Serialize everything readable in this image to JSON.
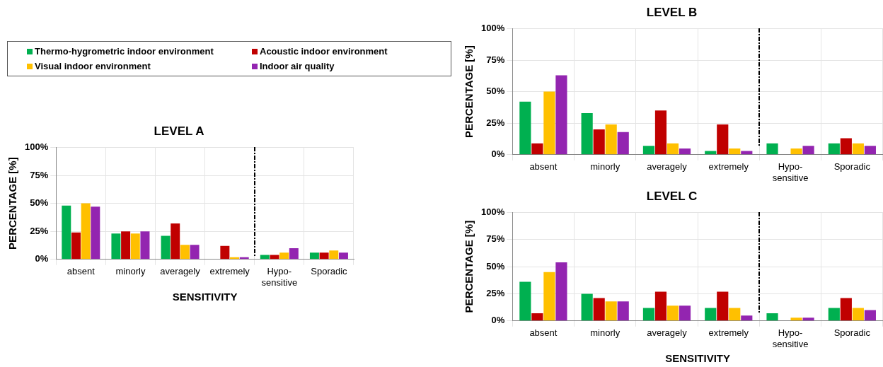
{
  "chart_data": [
    {
      "type": "bar",
      "title": "LEVEL A",
      "xlabel": "SENSITIVITY",
      "ylabel": "PERCENTAGE [%]",
      "categories": [
        "absent",
        "minorly",
        "averagely",
        "extremely",
        "Hypo-sensitive",
        "Sporadic"
      ],
      "series": [
        {
          "name": "Thermo-hygrometric indoor environment",
          "color": "#00b050",
          "values": [
            48,
            23,
            21,
            0,
            4,
            6
          ]
        },
        {
          "name": "Acoustic indoor environment",
          "color": "#c00000",
          "values": [
            24,
            25,
            32,
            12,
            4,
            6
          ]
        },
        {
          "name": "Visual indoor environment",
          "color": "#ffc000",
          "values": [
            50,
            23,
            13,
            2,
            6,
            8
          ]
        },
        {
          "name": "Indoor air quality",
          "color": "#9325b0",
          "values": [
            47,
            25,
            13,
            2,
            10,
            6
          ]
        }
      ],
      "ylim": [
        0,
        100
      ],
      "yticks": [
        {
          "value": 0,
          "label": "0%"
        },
        {
          "value": 25,
          "label": "25%"
        },
        {
          "value": 50,
          "label": "50%"
        },
        {
          "value": 75,
          "label": "75%"
        },
        {
          "value": 100,
          "label": "100%"
        }
      ],
      "grid": true,
      "legend": "top"
    },
    {
      "type": "bar",
      "title": "LEVEL B",
      "ylabel": "PERCENTAGE [%]",
      "categories": [
        "absent",
        "minorly",
        "averagely",
        "extremely",
        "Hypo-sensitive",
        "Sporadic"
      ],
      "series": [
        {
          "color": "#00b050",
          "values": [
            42,
            33,
            7,
            3,
            9,
            9
          ]
        },
        {
          "color": "#c00000",
          "values": [
            9,
            20,
            35,
            24,
            0,
            13
          ]
        },
        {
          "color": "#ffc000",
          "values": [
            50,
            24,
            9,
            5,
            5,
            9
          ]
        },
        {
          "color": "#9325b0",
          "values": [
            63,
            18,
            5,
            3,
            7,
            7
          ]
        }
      ],
      "ylim": [
        0,
        100
      ],
      "yticks": [
        {
          "value": 0,
          "label": "0%"
        },
        {
          "value": 25,
          "label": "25%"
        },
        {
          "value": 50,
          "label": "50%"
        },
        {
          "value": 75,
          "label": "75%"
        },
        {
          "value": 100,
          "label": "100%"
        }
      ],
      "grid": true
    },
    {
      "type": "bar",
      "title": "LEVEL C",
      "xlabel": "SENSITIVITY",
      "ylabel": "PERCENTAGE [%]",
      "categories": [
        "absent",
        "minorly",
        "averagely",
        "extremely",
        "Hypo-sensitive",
        "Sporadic"
      ],
      "series": [
        {
          "color": "#00b050",
          "values": [
            36,
            25,
            12,
            12,
            7,
            12
          ]
        },
        {
          "color": "#c00000",
          "values": [
            7,
            21,
            27,
            27,
            0,
            21
          ]
        },
        {
          "color": "#ffc000",
          "values": [
            45,
            18,
            14,
            12,
            3,
            12
          ]
        },
        {
          "color": "#9325b0",
          "values": [
            54,
            18,
            14,
            5,
            3,
            10
          ]
        }
      ],
      "ylim": [
        0,
        100
      ],
      "yticks": [
        {
          "value": 0,
          "label": "0%"
        },
        {
          "value": 25,
          "label": "25%"
        },
        {
          "value": 50,
          "label": "50%"
        },
        {
          "value": 75,
          "label": "75%"
        },
        {
          "value": 100,
          "label": "100%"
        }
      ],
      "grid": true
    }
  ]
}
